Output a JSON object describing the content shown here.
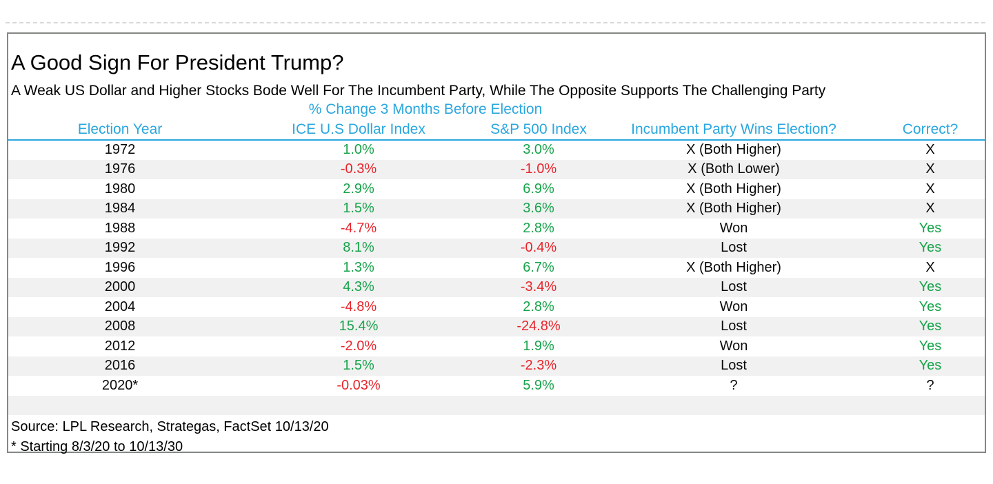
{
  "chart_data": {
    "type": "table",
    "title": "A Good Sign For President Trump?",
    "subtitle": "A Weak US Dollar and Higher Stocks Bode Well For The Incumbent Party, While The Opposite Supports The Challenging Party",
    "group_header": "% Change 3 Months Before Election",
    "columns": [
      "Election Year",
      "ICE U.S Dollar Index",
      "S&P 500 Index",
      "Incumbent Party Wins Election?",
      "Correct?"
    ],
    "rows": [
      {
        "year": "1972",
        "dollar": "1.0%",
        "dollar_tone": "green",
        "sp": "3.0%",
        "sp_tone": "green",
        "incumbent": "X (Both Higher)",
        "incumbent_tone": "black",
        "correct": "X",
        "correct_tone": "black"
      },
      {
        "year": "1976",
        "dollar": "-0.3%",
        "dollar_tone": "red",
        "sp": "-1.0%",
        "sp_tone": "red",
        "incumbent": "X (Both Lower)",
        "incumbent_tone": "black",
        "correct": "X",
        "correct_tone": "black"
      },
      {
        "year": "1980",
        "dollar": "2.9%",
        "dollar_tone": "green",
        "sp": "6.9%",
        "sp_tone": "green",
        "incumbent": "X (Both Higher)",
        "incumbent_tone": "black",
        "correct": "X",
        "correct_tone": "black"
      },
      {
        "year": "1984",
        "dollar": "1.5%",
        "dollar_tone": "green",
        "sp": "3.6%",
        "sp_tone": "green",
        "incumbent": "X (Both Higher)",
        "incumbent_tone": "black",
        "correct": "X",
        "correct_tone": "black"
      },
      {
        "year": "1988",
        "dollar": "-4.7%",
        "dollar_tone": "red",
        "sp": "2.8%",
        "sp_tone": "green",
        "incumbent": "Won",
        "incumbent_tone": "black",
        "correct": "Yes",
        "correct_tone": "green"
      },
      {
        "year": "1992",
        "dollar": "8.1%",
        "dollar_tone": "green",
        "sp": "-0.4%",
        "sp_tone": "red",
        "incumbent": "Lost",
        "incumbent_tone": "black",
        "correct": "Yes",
        "correct_tone": "green"
      },
      {
        "year": "1996",
        "dollar": "1.3%",
        "dollar_tone": "green",
        "sp": "6.7%",
        "sp_tone": "green",
        "incumbent": "X (Both Higher)",
        "incumbent_tone": "black",
        "correct": "X",
        "correct_tone": "black"
      },
      {
        "year": "2000",
        "dollar": "4.3%",
        "dollar_tone": "green",
        "sp": "-3.4%",
        "sp_tone": "red",
        "incumbent": "Lost",
        "incumbent_tone": "black",
        "correct": "Yes",
        "correct_tone": "green"
      },
      {
        "year": "2004",
        "dollar": "-4.8%",
        "dollar_tone": "red",
        "sp": "2.8%",
        "sp_tone": "green",
        "incumbent": "Won",
        "incumbent_tone": "black",
        "correct": "Yes",
        "correct_tone": "green"
      },
      {
        "year": "2008",
        "dollar": "15.4%",
        "dollar_tone": "green",
        "sp": "-24.8%",
        "sp_tone": "red",
        "incumbent": "Lost",
        "incumbent_tone": "black",
        "correct": "Yes",
        "correct_tone": "green"
      },
      {
        "year": "2012",
        "dollar": "-2.0%",
        "dollar_tone": "red",
        "sp": "1.9%",
        "sp_tone": "green",
        "incumbent": "Won",
        "incumbent_tone": "black",
        "correct": "Yes",
        "correct_tone": "green"
      },
      {
        "year": "2016",
        "dollar": "1.5%",
        "dollar_tone": "green",
        "sp": "-2.3%",
        "sp_tone": "red",
        "incumbent": "Lost",
        "incumbent_tone": "black",
        "correct": "Yes",
        "correct_tone": "green"
      },
      {
        "year": "2020*",
        "dollar": "-0.03%",
        "dollar_tone": "red",
        "sp": "5.9%",
        "sp_tone": "green",
        "incumbent": "?",
        "incumbent_tone": "black",
        "correct": "?",
        "correct_tone": "black"
      }
    ],
    "footnotes": [
      "Source: LPL Research, Strategas, FactSet 10/13/20",
      "* Starting 8/3/20 to 10/13/30"
    ],
    "layout": {
      "striped": true,
      "first_row_white": true,
      "trailing_empty_striped_row": true,
      "legend": "none",
      "grid": "off"
    },
    "colors": {
      "header_blue": "#2BA7DF",
      "positive_green": "#17A34A",
      "negative_red": "#E9242B",
      "stripe_gray": "#F1F1F1",
      "box_border_gray": "#848884"
    }
  }
}
